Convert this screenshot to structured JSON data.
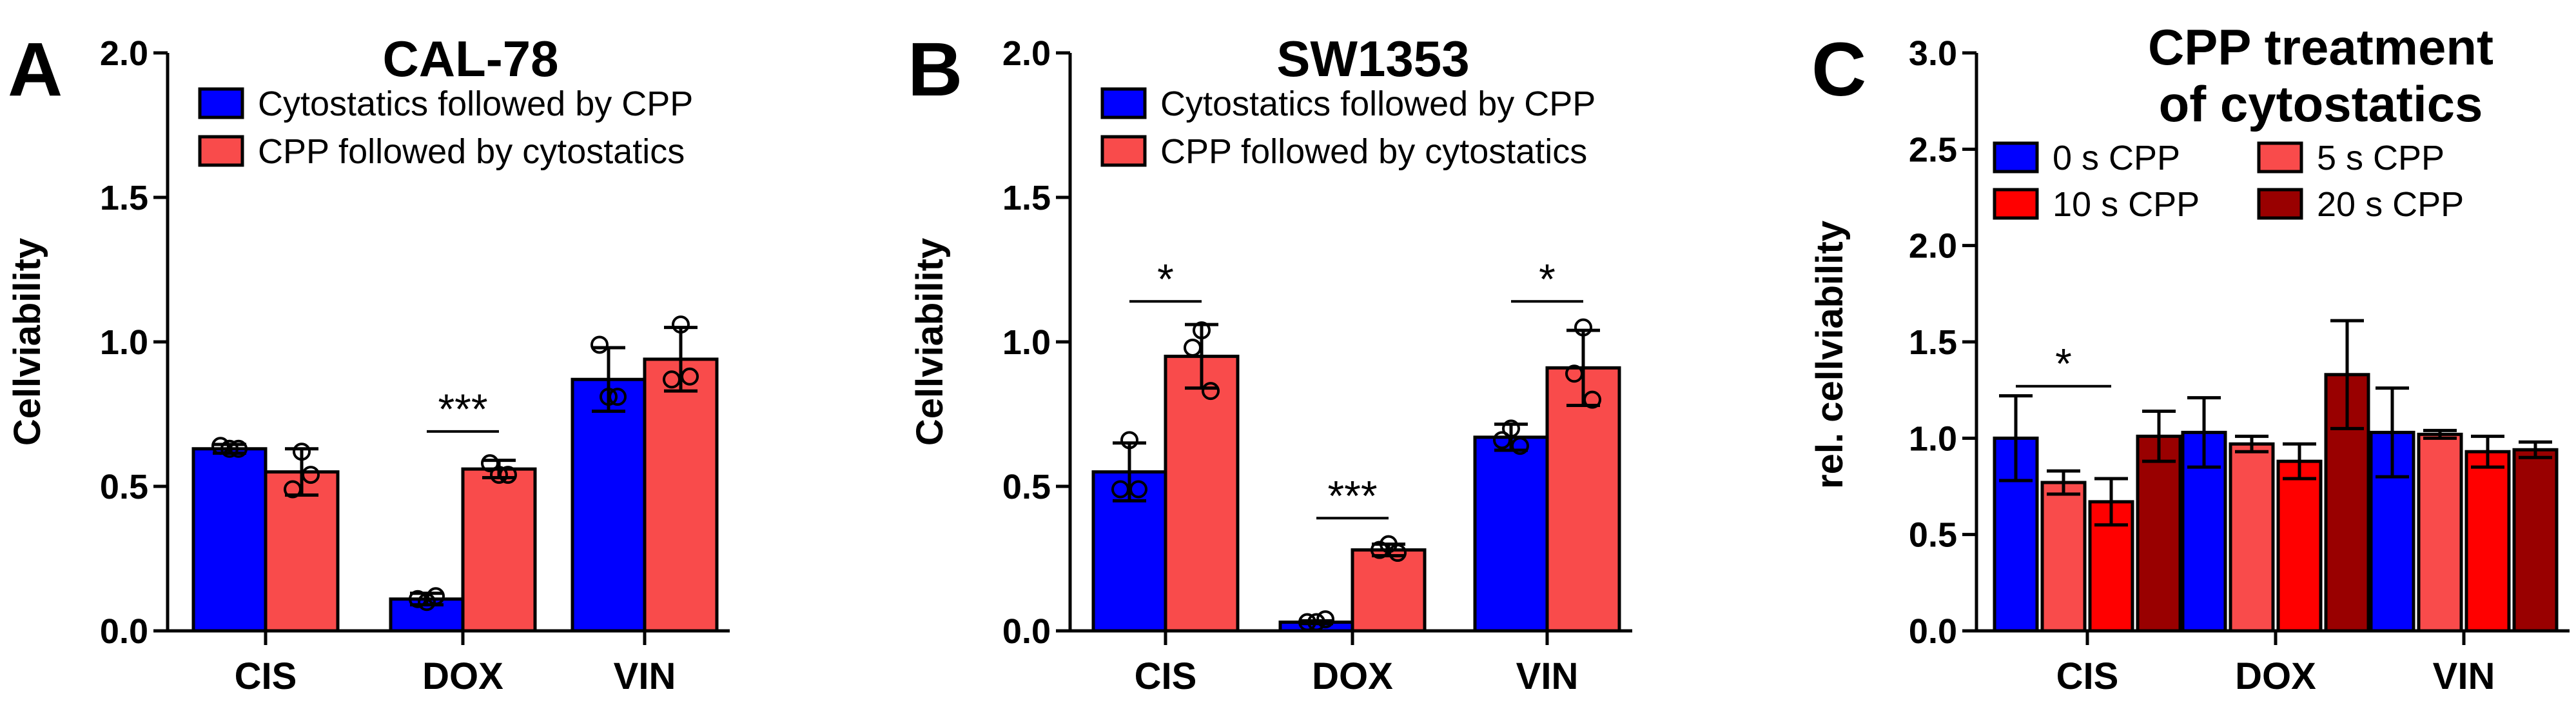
{
  "chart_data": [
    {
      "panel": "A",
      "type": "bar",
      "title": "CAL-78",
      "xlabel": "",
      "ylabel": "Cellviability",
      "ylim": [
        0,
        2.0
      ],
      "yticks": [
        "0.0",
        "0.5",
        "1.0",
        "1.5",
        "2.0"
      ],
      "categories": [
        "CIS",
        "DOX",
        "VIN"
      ],
      "series": [
        {
          "name": "Cytostatics followed by CPP",
          "color": "#0000ff",
          "values": [
            0.63,
            0.11,
            0.87
          ],
          "errors": [
            0.015,
            0.02,
            0.11
          ],
          "points": [
            [
              0.63,
              0.64,
              0.63
            ],
            [
              0.1,
              0.11,
              0.12
            ],
            [
              0.81,
              0.99,
              0.81
            ]
          ]
        },
        {
          "name": "CPP followed by cytostatics",
          "color": "#f94b4b",
          "values": [
            0.55,
            0.56,
            0.94
          ],
          "errors": [
            0.08,
            0.03,
            0.11
          ],
          "points": [
            [
              0.62,
              0.49,
              0.54
            ],
            [
              0.54,
              0.58,
              0.54
            ],
            [
              1.06,
              0.87,
              0.88
            ]
          ]
        }
      ],
      "significance": [
        {
          "category": "DOX",
          "label": "***",
          "y": 0.69
        }
      ]
    },
    {
      "panel": "B",
      "type": "bar",
      "title": "SW1353",
      "xlabel": "",
      "ylabel": "Cellviability",
      "ylim": [
        0,
        2.0
      ],
      "yticks": [
        "0.0",
        "0.5",
        "1.0",
        "1.5",
        "2.0"
      ],
      "categories": [
        "CIS",
        "DOX",
        "VIN"
      ],
      "series": [
        {
          "name": "Cytostatics followed by CPP",
          "color": "#0000ff",
          "values": [
            0.55,
            0.03,
            0.67
          ],
          "errors": [
            0.1,
            0.005,
            0.045
          ],
          "points": [
            [
              0.66,
              0.49,
              0.49
            ],
            [
              0.03,
              0.03,
              0.04
            ],
            [
              0.7,
              0.66,
              0.64
            ]
          ]
        },
        {
          "name": "CPP followed by cytostatics",
          "color": "#f94b4b",
          "values": [
            0.95,
            0.28,
            0.91
          ],
          "errors": [
            0.11,
            0.02,
            0.13
          ],
          "points": [
            [
              1.04,
              0.98,
              0.83
            ],
            [
              0.3,
              0.28,
              0.27
            ],
            [
              1.05,
              0.89,
              0.8
            ]
          ]
        }
      ],
      "significance": [
        {
          "category": "CIS",
          "label": "*",
          "y": 1.14
        },
        {
          "category": "DOX",
          "label": "***",
          "y": 0.39
        },
        {
          "category": "VIN",
          "label": "*",
          "y": 1.14
        }
      ]
    },
    {
      "panel": "C",
      "type": "bar",
      "title": "CPP treatment",
      "title_line2": "of cytostatics",
      "xlabel": "",
      "ylabel": "rel. cellviability",
      "ylim": [
        0,
        3.0
      ],
      "yticks": [
        "0.0",
        "0.5",
        "1.0",
        "1.5",
        "2.0",
        "2.5",
        "3.0"
      ],
      "categories": [
        "CIS",
        "DOX",
        "VIN"
      ],
      "series": [
        {
          "name": "0 s CPP",
          "color": "#0000ff",
          "values": [
            1.0,
            1.03,
            1.03
          ],
          "errors": [
            0.22,
            0.18,
            0.23
          ]
        },
        {
          "name": "5 s CPP",
          "color": "#f94b4b",
          "values": [
            0.77,
            0.97,
            1.02
          ],
          "errors": [
            0.06,
            0.04,
            0.02
          ]
        },
        {
          "name": "10 s CPP",
          "color": "#ff0000",
          "values": [
            0.67,
            0.88,
            0.93
          ],
          "errors": [
            0.12,
            0.09,
            0.08
          ]
        },
        {
          "name": "20 s CPP",
          "color": "#990000",
          "values": [
            1.01,
            1.33,
            0.94
          ],
          "errors": [
            0.13,
            0.28,
            0.04
          ]
        }
      ],
      "significance": [
        {
          "category": "CIS",
          "label": "*",
          "from_series": 0,
          "to_series": 2,
          "y": 1.27
        }
      ]
    }
  ]
}
